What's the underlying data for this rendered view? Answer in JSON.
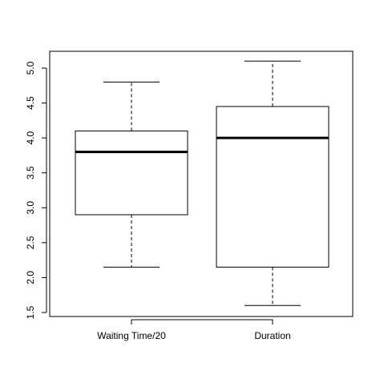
{
  "chart_data": {
    "type": "boxplot",
    "title": "",
    "xlabel": "",
    "ylabel": "",
    "ylim": [
      1.5,
      5.2
    ],
    "yticks": [
      1.5,
      2.0,
      2.5,
      3.0,
      3.5,
      4.0,
      4.5,
      5.0
    ],
    "ytick_labels": [
      "1.5",
      "2.0",
      "2.5",
      "3.0",
      "3.5",
      "4.0",
      "4.5",
      "5.0"
    ],
    "grid": false,
    "categories": [
      "Waiting Time/20",
      "Duration"
    ],
    "boxes": [
      {
        "min": 2.15,
        "q1": 2.9,
        "median": 3.8,
        "q3": 4.1,
        "max": 4.8
      },
      {
        "min": 1.6,
        "q1": 2.15,
        "median": 4.0,
        "q3": 4.45,
        "max": 5.1
      }
    ],
    "colors": {
      "stroke": "#000000",
      "box_fill": "#ffffff",
      "background": "#ffffff"
    }
  }
}
